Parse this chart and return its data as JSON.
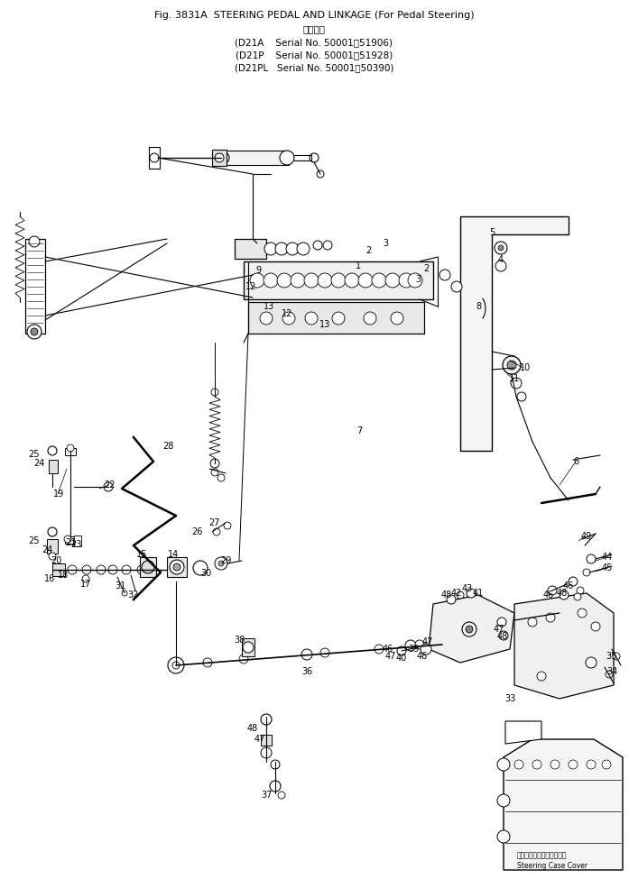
{
  "title_line1": "Fig. 3831A  STEERING PEDAL AND LINKAGE (For Pedal Steering)",
  "title_line2": "適用号機",
  "serial_line1": "(D21A    Serial No. 50001～51906)",
  "serial_line2": "(D21P    Serial No. 50001～51928)",
  "serial_line3": "(D21PL   Serial No. 50001～50390)",
  "bg_color": "#ffffff",
  "text_color": "#000000",
  "fig_width": 6.97,
  "fig_height": 9.85,
  "dpi": 100
}
